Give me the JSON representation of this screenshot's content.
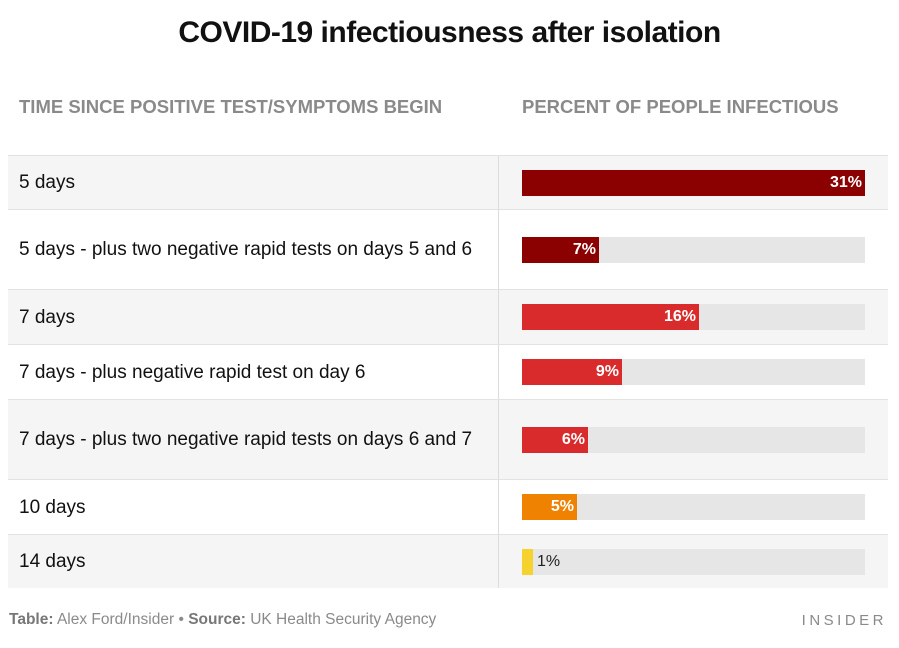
{
  "title": "COVID-19 infectiousness after isolation",
  "columns": {
    "left": "TIME SINCE POSITIVE TEST/SYMPTOMS BEGIN",
    "right": "PERCENT OF PEOPLE INFECTIOUS"
  },
  "footer": {
    "table_label": "Table:",
    "table_value": "Alex Ford/Insider",
    "bullet": "•",
    "source_label": "Source:",
    "source_value": "UK Health Security Agency"
  },
  "brand": "INSIDER",
  "chart_data": {
    "type": "bar",
    "orientation": "horizontal",
    "title": "COVID-19 infectiousness after isolation",
    "xlabel": "PERCENT OF PEOPLE INFECTIOUS",
    "ylabel": "TIME SINCE POSITIVE TEST/SYMPTOMS BEGIN",
    "xlim": [
      0,
      31
    ],
    "categories": [
      "5 days",
      "5 days - plus two negative rapid tests on days 5 and 6",
      "7 days",
      "7 days - plus negative rapid test on day 6",
      "7 days - plus two negative rapid tests on days 6 and 7",
      "10 days",
      "14 days"
    ],
    "values": [
      31,
      7,
      16,
      9,
      6,
      5,
      1
    ],
    "value_labels": [
      "31%",
      "7%",
      "16%",
      "9%",
      "6%",
      "5%",
      "1%"
    ],
    "colors": [
      "#8b0000",
      "#8b0000",
      "#d92b2b",
      "#d92b2b",
      "#d92b2b",
      "#ef8200",
      "#f5d22e"
    ],
    "track_color": "#e6e6e6",
    "grid": false,
    "legend": "none"
  }
}
